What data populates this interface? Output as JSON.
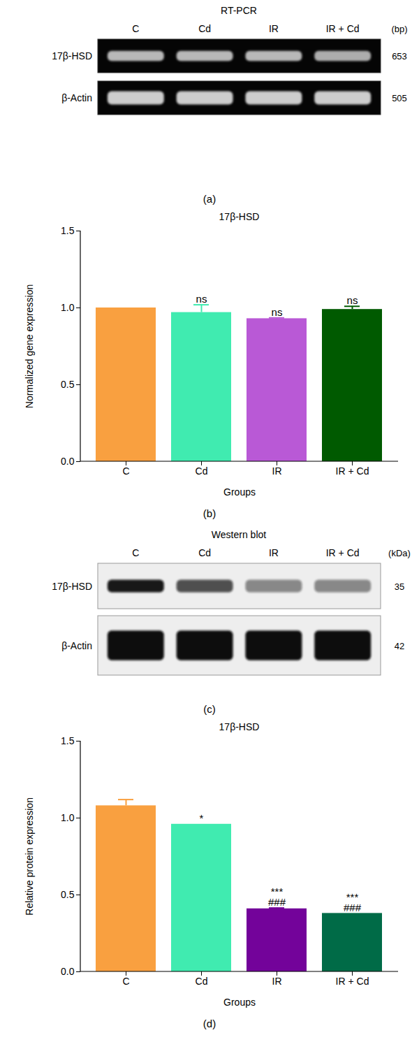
{
  "chart_data": [
    {
      "type": "gel",
      "caption": "(a)",
      "title": "RT-PCR",
      "categories": [
        "C",
        "Cd",
        "IR",
        "IR + Cd"
      ],
      "size_unit": "(bp)",
      "bands": [
        {
          "name": "17β-HSD",
          "size": 653
        },
        {
          "name": "β-Actin",
          "size": 505
        }
      ]
    },
    {
      "type": "bar",
      "caption": "(b)",
      "title": "17β-HSD",
      "x_label": "Groups",
      "y_label": "Normalized gene expression",
      "categories": [
        "C",
        "Cd",
        "IR",
        "IR + Cd"
      ],
      "values": [
        1.0,
        0.97,
        0.93,
        0.99
      ],
      "errors": [
        0,
        0.05,
        0.005,
        0.02
      ],
      "colors": [
        "#f9a040",
        "#40ebb0",
        "#b959d6",
        "#005a00"
      ],
      "annotations": [
        [],
        [
          "ns"
        ],
        [
          "ns"
        ],
        [
          "ns"
        ]
      ],
      "ylim": [
        0,
        1.5
      ],
      "yticks": [
        {
          "value": 0,
          "label": "0.0"
        },
        0.5,
        {
          "value": 1,
          "label": "1.0"
        },
        1.5
      ]
    },
    {
      "type": "gel",
      "caption": "(c)",
      "title": "Western blot",
      "categories": [
        "C",
        "Cd",
        "IR",
        "IR + Cd"
      ],
      "size_unit": "(kDa)",
      "bands": [
        {
          "name": "17β-HSD",
          "size": 35
        },
        {
          "name": "β-Actin",
          "size": 42
        }
      ]
    },
    {
      "type": "bar",
      "caption": "(d)",
      "title": "17β-HSD",
      "x_label": "Groups",
      "y_label": "Relative protein expression",
      "categories": [
        "C",
        "Cd",
        "IR",
        "IR + Cd"
      ],
      "values": [
        1.08,
        0.96,
        0.41,
        0.38
      ],
      "errors": [
        0.04,
        0,
        0.005,
        0
      ],
      "colors": [
        "#f9a040",
        "#40ebb0",
        "#73039a",
        "#006b47"
      ],
      "annotations": [
        [],
        [
          "*"
        ],
        [
          "***",
          "###"
        ],
        [
          "***",
          "###"
        ]
      ],
      "ylim": [
        0,
        1.5
      ],
      "yticks": [
        {
          "value": 0,
          "label": "0.0"
        },
        0.5,
        {
          "value": 1,
          "label": "1.0"
        },
        1.5
      ]
    }
  ]
}
